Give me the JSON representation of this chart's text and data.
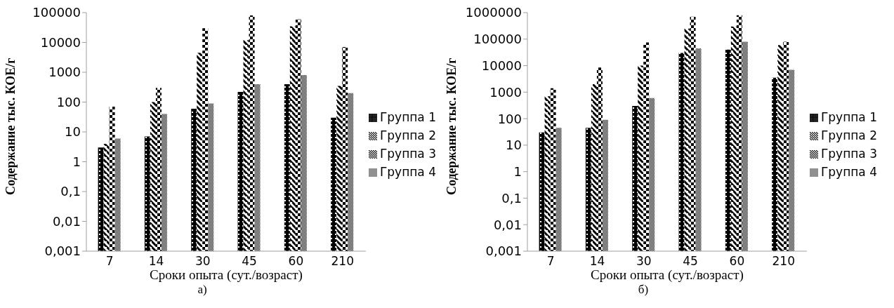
{
  "chart_data": [
    {
      "type": "bar",
      "xlabel": "Сроки опыта (сут./возраст)",
      "ylabel": "Содержание  тыс.  КОЕ/г",
      "annotations": [
        "а)"
      ],
      "categories": [
        "7",
        "14",
        "30",
        "45",
        "60",
        "210"
      ],
      "log": true,
      "legend": "right",
      "ylim": [
        0.001,
        100000
      ],
      "yticks": [
        {
          "value": 0.001,
          "label": "0,001"
        },
        {
          "value": 0.01,
          "label": "0,01"
        },
        {
          "value": 0.1,
          "label": "0,1"
        },
        1,
        10,
        100,
        1000,
        10000,
        100000
      ],
      "series": [
        {
          "name": "Группа 1",
          "color": "#000000",
          "values": [
            3,
            7,
            60,
            220,
            400,
            30
          ]
        },
        {
          "name": "Группа 2",
          "color": "#000000",
          "values": [
            4,
            100,
            4500,
            12000,
            35000,
            350
          ]
        },
        {
          "name": "Группа 3",
          "color": "#000000",
          "values": [
            70,
            300,
            30000,
            80000,
            60000,
            7000
          ]
        },
        {
          "name": "Группа 4",
          "color": "#000000",
          "values": [
            6,
            40,
            90,
            400,
            800,
            200
          ]
        }
      ]
    },
    {
      "type": "bar",
      "xlabel": "Сроки опыта (сут./возраст)",
      "ylabel": "Содержание  тыс.  КОЕ/г",
      "annotations": [
        "б)"
      ],
      "categories": [
        "7",
        "14",
        "30",
        "45",
        "60",
        "210"
      ],
      "log": true,
      "legend": "right",
      "ylim": [
        0.001,
        1000000
      ],
      "yticks": [
        {
          "value": 0.001,
          "label": "0,001"
        },
        {
          "value": 0.01,
          "label": "0,01"
        },
        {
          "value": 0.1,
          "label": "0,1"
        },
        1,
        10,
        100,
        1000,
        10000,
        100000,
        1000000
      ],
      "series": [
        {
          "name": "Группа 1",
          "color": "#000000",
          "values": [
            30,
            45,
            300,
            30000,
            40000,
            3500
          ]
        },
        {
          "name": "Группа 2",
          "color": "#000000",
          "values": [
            700,
            2000,
            10000,
            250000,
            300000,
            60000
          ]
        },
        {
          "name": "Группа 3",
          "color": "#000000",
          "values": [
            1400,
            8500,
            75000,
            700000,
            800000,
            80000
          ]
        },
        {
          "name": "Группа 4",
          "color": "#000000",
          "values": [
            45,
            90,
            600,
            45000,
            80000,
            7000
          ]
        }
      ]
    }
  ]
}
